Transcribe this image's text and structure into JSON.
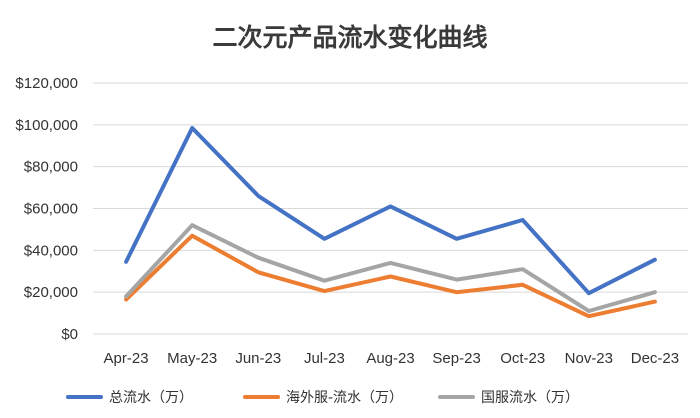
{
  "chart_data": {
    "type": "line",
    "title": "二次元产品流水变化曲线",
    "xlabel": "",
    "ylabel": "",
    "categories": [
      "Apr-23",
      "May-23",
      "Jun-23",
      "Jul-23",
      "Aug-23",
      "Sep-23",
      "Oct-23",
      "Nov-23",
      "Dec-23"
    ],
    "ylim": [
      0,
      120000
    ],
    "yticks": [
      0,
      20000,
      40000,
      60000,
      80000,
      100000,
      120000
    ],
    "ytick_labels": [
      "$0",
      "$20,000",
      "$40,000",
      "$60,000",
      "$80,000",
      "$100,000",
      "$120,000"
    ],
    "grid": true,
    "legend_position": "bottom",
    "series": [
      {
        "name": "总流水（万）",
        "color": "#4472c4",
        "values": [
          34500,
          98500,
          66000,
          45500,
          61000,
          45500,
          54500,
          19500,
          35500
        ]
      },
      {
        "name": "海外服-流水（万）",
        "color": "#ed7d31",
        "values": [
          16500,
          47000,
          29500,
          20500,
          27500,
          20000,
          23500,
          8500,
          15500
        ]
      },
      {
        "name": "国服流水（万）",
        "color": "#a5a5a5",
        "values": [
          18000,
          52000,
          36500,
          25500,
          34000,
          26000,
          31000,
          11000,
          20000
        ]
      }
    ]
  }
}
